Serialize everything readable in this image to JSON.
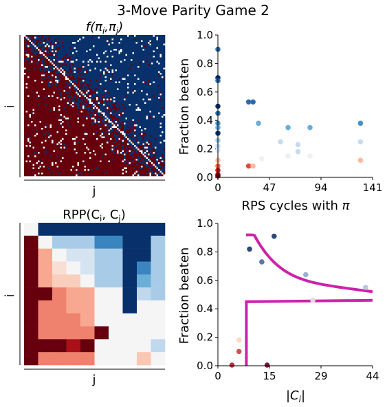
{
  "title": "3-Move Parity Game 2",
  "chart_data": [
    {
      "type": "heatmap",
      "title": "f(πi,πj)",
      "title_main": "f(π",
      "title_i": "i",
      "title_mid": ",π",
      "title_j": "j",
      "title_end": ")",
      "xlabel": "j",
      "ylabel": "i",
      "values": "binary payoff matrix (upper-right mostly blue = +1, lower-left mostly red = -1, noisy interleaved band near diagonal)",
      "colors": {
        "pos": "#08306b",
        "neg": "#67000d",
        "zero": "#ffffff"
      }
    },
    {
      "type": "scatter",
      "xlabel_main": "RPS cycles with ",
      "xlabel_sym": "π",
      "ylabel": "Fraction beaten",
      "xlim": [
        0,
        141
      ],
      "ylim": [
        0,
        1.0
      ],
      "xticks": [
        "0",
        "47",
        "94",
        "141"
      ],
      "yticks": [
        "0.0",
        "0.2",
        "0.4",
        "0.6",
        "0.8",
        "1.0"
      ],
      "points": [
        {
          "x": 0,
          "y": 0.9,
          "c": "#2e6aa8"
        },
        {
          "x": 0,
          "y": 0.7,
          "c": "#08306b"
        },
        {
          "x": 0,
          "y": 0.68,
          "c": "#2e6aa8"
        },
        {
          "x": 0,
          "y": 0.5,
          "c": "#08306b"
        },
        {
          "x": 0,
          "y": 0.45,
          "c": "#2e6aa8"
        },
        {
          "x": 0,
          "y": 0.38,
          "c": "#4a90c4"
        },
        {
          "x": 0,
          "y": 0.35,
          "c": "#6baed6"
        },
        {
          "x": 0,
          "y": 0.31,
          "c": "#08306b"
        },
        {
          "x": 0,
          "y": 0.26,
          "c": "#9ecae1"
        },
        {
          "x": 0,
          "y": 0.22,
          "c": "#c6dbef"
        },
        {
          "x": 0,
          "y": 0.19,
          "c": "#dbe9f6"
        },
        {
          "x": 0,
          "y": 0.12,
          "c": "#fcbba1"
        },
        {
          "x": 0,
          "y": 0.08,
          "c": "#fb6a4a"
        },
        {
          "x": 0,
          "y": 0.05,
          "c": "#cb181d"
        },
        {
          "x": 0,
          "y": 0.02,
          "c": "#a50f15"
        },
        {
          "x": 0,
          "y": 0.01,
          "c": "#67000d"
        },
        {
          "x": 28,
          "y": 0.53,
          "c": "#2e6aa8"
        },
        {
          "x": 32,
          "y": 0.53,
          "c": "#2e6aa8"
        },
        {
          "x": 37,
          "y": 0.38,
          "c": "#6baed6"
        },
        {
          "x": 28,
          "y": 0.08,
          "c": "#e34a33"
        },
        {
          "x": 32,
          "y": 0.08,
          "c": "#fcbba1"
        },
        {
          "x": 40,
          "y": 0.13,
          "c": "#f0f0f0"
        },
        {
          "x": 57,
          "y": 0.25,
          "c": "#c6dbef"
        },
        {
          "x": 64,
          "y": 0.35,
          "c": "#6baed6"
        },
        {
          "x": 64,
          "y": 0.15,
          "c": "#f0f0f0"
        },
        {
          "x": 73,
          "y": 0.23,
          "c": "#c6dbef"
        },
        {
          "x": 73,
          "y": 0.18,
          "c": "#c6dbef"
        },
        {
          "x": 84,
          "y": 0.35,
          "c": "#6baed6"
        },
        {
          "x": 84,
          "y": 0.15,
          "c": "#f0f0f0"
        },
        {
          "x": 130,
          "y": 0.38,
          "c": "#4a90c4"
        },
        {
          "x": 130,
          "y": 0.25,
          "c": "#c6dbef"
        },
        {
          "x": 130,
          "y": 0.12,
          "c": "#fcbba1"
        }
      ]
    },
    {
      "type": "heatmap",
      "title_main": "RPP(C",
      "title_i": "i",
      "title_mid": ", C",
      "title_j": "j",
      "title_end": ")",
      "xlabel": "j",
      "ylabel": "i",
      "grid": [
        [
          0,
          3,
          3,
          3,
          3,
          3,
          3,
          3,
          3,
          3
        ],
        [
          -3,
          0,
          1,
          1,
          1,
          2,
          2,
          3,
          3,
          1
        ],
        [
          -3,
          -1,
          0,
          0.5,
          0.5,
          1,
          1,
          3,
          3,
          1
        ],
        [
          -3,
          -1,
          -0.3,
          0,
          0.5,
          1,
          1,
          3,
          2,
          1
        ],
        [
          -3,
          -1,
          -0.5,
          -0.5,
          0,
          1,
          1,
          3,
          1.5,
          1
        ],
        [
          -3,
          -3,
          -1.5,
          -1,
          -1,
          0,
          0,
          3,
          0.8,
          1
        ],
        [
          -3,
          -1.5,
          -1.5,
          -1,
          -1,
          0,
          0,
          3,
          0,
          0
        ],
        [
          -3,
          -1.5,
          -1.5,
          -1.5,
          -1,
          0,
          0,
          0,
          0,
          0
        ],
        [
          -3,
          -1.5,
          -1.5,
          -1.5,
          -1.5,
          -3,
          0,
          0,
          0,
          0
        ],
        [
          -3,
          -3,
          -3,
          -2.5,
          -3,
          0,
          0,
          0,
          0,
          0.8
        ],
        [
          -3,
          -1.5,
          -1.5,
          -1.5,
          -1.5,
          0,
          0,
          0,
          -0.6,
          0
        ]
      ]
    },
    {
      "type": "scatter",
      "xlabel_main": "|C",
      "xlabel_sub": "i",
      "xlabel_end": "|",
      "ylabel": "Fraction beaten",
      "xlim": [
        0,
        44
      ],
      "ylim": [
        0,
        1.0
      ],
      "xticks": [
        "0",
        "15",
        "29",
        "44"
      ],
      "yticks": [
        "0.0",
        "0.2",
        "0.4",
        "0.6",
        "0.8",
        "1.0"
      ],
      "line_color": "#cc22aa",
      "points": [
        {
          "x": 16,
          "y": 0.91,
          "c": "#2e4a7a"
        },
        {
          "x": 9,
          "y": 0.82,
          "c": "#2e4a7a"
        },
        {
          "x": 12.5,
          "y": 0.73,
          "c": "#5a7aa8"
        },
        {
          "x": 25,
          "y": 0.64,
          "c": "#9ab0d0"
        },
        {
          "x": 42,
          "y": 0.55,
          "c": "#b8c8e0"
        },
        {
          "x": 27,
          "y": 0.46,
          "c": "#e8d8e0"
        },
        {
          "x": 6,
          "y": 0.18,
          "c": "#fcd8c8"
        },
        {
          "x": 6,
          "y": 0.1,
          "c": "#d05050"
        },
        {
          "x": 4,
          "y": 0.005,
          "c": "#c03040"
        },
        {
          "x": 14,
          "y": 0.005,
          "c": "#7a1a3a"
        }
      ]
    }
  ]
}
